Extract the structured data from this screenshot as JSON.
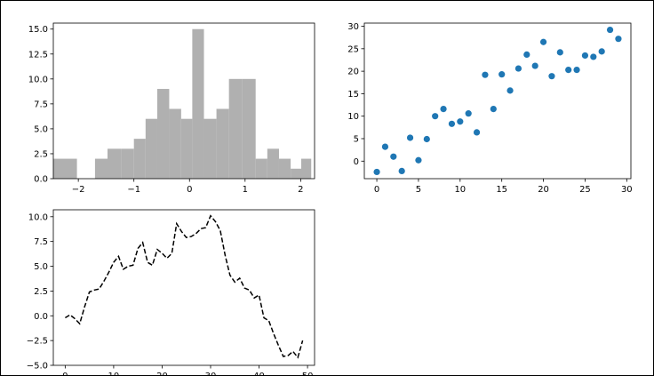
{
  "colors": {
    "histogram_bar": "#b0b0b0",
    "scatter_point": "#1f77b4",
    "line_stroke": "#000000",
    "axis": "#000000",
    "background": "#ffffff"
  },
  "chart_data": [
    {
      "type": "bar",
      "variant": "histogram",
      "x": [
        -2.25,
        -1.8,
        -1.6,
        -1.35,
        -1.1,
        -0.9,
        -0.68,
        -0.48,
        -0.25,
        -0.05,
        0.15,
        0.37,
        0.6,
        0.82,
        1.08,
        1.3,
        1.5,
        1.72,
        1.92,
        2.1
      ],
      "values": [
        2,
        0,
        2,
        3,
        3,
        4,
        6,
        9,
        7,
        6,
        15,
        6,
        7,
        10,
        10,
        2,
        3,
        2,
        1,
        2
      ],
      "xlim": [
        -2.45,
        2.25
      ],
      "ylim": [
        0,
        15.6
      ],
      "xticks": [
        "−2",
        "−1",
        "0",
        "1",
        "2"
      ],
      "yticks": [
        "0.0",
        "2.5",
        "5.0",
        "7.5",
        "10.0",
        "12.5",
        "15.0"
      ],
      "grid": false
    },
    {
      "type": "scatter",
      "x": [
        0,
        1,
        2,
        3,
        4,
        5,
        6,
        7,
        8,
        9,
        10,
        11,
        12,
        13,
        14,
        15,
        16,
        17,
        18,
        19,
        20,
        21,
        22,
        23,
        24,
        25,
        26,
        27,
        28,
        29
      ],
      "y": [
        -2.4,
        3.2,
        1.0,
        -2.2,
        5.2,
        0.2,
        4.9,
        10.0,
        11.6,
        8.3,
        8.8,
        10.6,
        6.4,
        19.2,
        11.6,
        19.3,
        15.7,
        20.6,
        23.7,
        21.2,
        26.5,
        18.9,
        24.2,
        20.3,
        20.3,
        23.5,
        23.2,
        24.4,
        29.2,
        27.2
      ],
      "xlim": [
        -1.5,
        30.5
      ],
      "ylim": [
        -3.9,
        30.7
      ],
      "xticks": [
        "0",
        "5",
        "10",
        "15",
        "20",
        "25",
        "30"
      ],
      "yticks": [
        "0",
        "5",
        "10",
        "15",
        "20",
        "25",
        "30"
      ],
      "grid": false
    },
    {
      "type": "line",
      "style": "dashed",
      "x": [
        0,
        1,
        2,
        3,
        4,
        5,
        6,
        7,
        8,
        9,
        10,
        11,
        12,
        13,
        14,
        15,
        16,
        17,
        18,
        19,
        20,
        21,
        22,
        23,
        24,
        25,
        26,
        27,
        28,
        29,
        30,
        31,
        32,
        33,
        34,
        35,
        36,
        37,
        38,
        39,
        40,
        41,
        42,
        43,
        44,
        45,
        46,
        47,
        48,
        49
      ],
      "y": [
        -0.2,
        0.1,
        -0.3,
        -0.8,
        0.9,
        2.4,
        2.6,
        2.7,
        3.5,
        4.4,
        5.4,
        6.0,
        4.7,
        5.0,
        5.1,
        6.8,
        7.4,
        5.4,
        5.1,
        6.7,
        6.3,
        5.8,
        6.3,
        9.3,
        8.5,
        7.9,
        8.0,
        8.3,
        8.8,
        8.9,
        10.1,
        9.5,
        8.6,
        6.1,
        4.1,
        3.4,
        3.8,
        2.8,
        2.6,
        1.8,
        2.1,
        -0.2,
        -0.5,
        -1.8,
        -3.0,
        -4.1,
        -4.0,
        -3.6,
        -4.2,
        -2.5
      ],
      "xlim": [
        -2.45,
        51.45
      ],
      "ylim": [
        -5.0,
        10.7
      ],
      "xticks": [
        "0",
        "10",
        "20",
        "30",
        "40",
        "50"
      ],
      "yticks": [
        "−5.0",
        "−2.5",
        "0.0",
        "2.5",
        "5.0",
        "7.5",
        "10.0"
      ],
      "grid": false
    }
  ]
}
